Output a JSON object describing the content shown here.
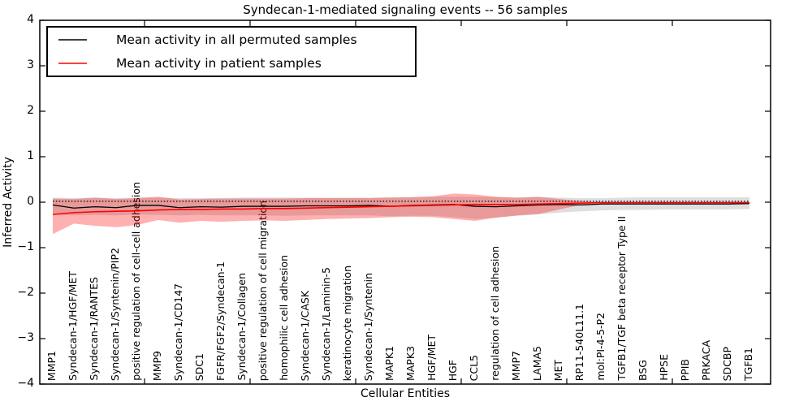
{
  "figure": {
    "title": "Syndecan-1-mediated signaling events -- 56 samples",
    "xlabel": "Cellular Entities",
    "ylabel": "Inferred Activity"
  },
  "legend": {
    "items": [
      {
        "label": "Mean activity in all permuted samples",
        "color": "#000000"
      },
      {
        "label": "Mean activity in patient samples",
        "color": "#ff0000"
      }
    ]
  },
  "chart_data": {
    "type": "line",
    "title": "Syndecan-1-mediated signaling events -- 56 samples",
    "xlabel": "Cellular Entities",
    "ylabel": "Inferred Activity",
    "ylim": [
      -4,
      4
    ],
    "yticks": [
      4,
      3,
      2,
      1,
      0,
      -1,
      -2,
      -3,
      -4
    ],
    "grid": false,
    "legend_position": "upper left",
    "baseline": {
      "value": 0.02,
      "style": "dotted",
      "color": "#000000"
    },
    "categories": [
      "MMP1",
      "Syndecan-1/HGF/MET",
      "Syndecan-1/RANTES",
      "Syndecan-1/Syntenin/PIP2",
      "positive regulation of cell-cell adhesion",
      "MMP9",
      "Syndecan-1/CD147",
      "SDC1",
      "FGFR/FGF2/Syndecan-1",
      "Syndecan-1/Collagen",
      "positive regulation of cell migration",
      "homophilic cell adhesion",
      "Syndecan-1/CASK",
      "Syndecan-1/Laminin-5",
      "keratinocyte migration",
      "Syndecan-1/Syntenin",
      "MAPK1",
      "MAPK3",
      "HGF/MET",
      "HGF",
      "CCL5",
      "regulation of cell adhesion",
      "MMP7",
      "LAMA5",
      "MET",
      "RP11-540L11.1",
      "mol:PI-4-5-P2",
      "TGFB1/TGF beta receptor Type II",
      "BSG",
      "HPSE",
      "PPIB",
      "PRKACA",
      "SDCBP",
      "TGFB1"
    ],
    "series": [
      {
        "name": "Mean activity in all permuted samples",
        "color": "#000000",
        "width": 1.3,
        "values": [
          -0.06,
          -0.13,
          -0.1,
          -0.12,
          -0.07,
          -0.07,
          -0.12,
          -0.1,
          -0.11,
          -0.09,
          -0.09,
          -0.09,
          -0.08,
          -0.08,
          -0.08,
          -0.07,
          -0.09,
          -0.07,
          -0.06,
          -0.05,
          -0.09,
          -0.1,
          -0.08,
          -0.06,
          -0.05,
          -0.06,
          -0.04,
          -0.04,
          -0.04,
          -0.04,
          -0.04,
          -0.04,
          -0.04,
          -0.03
        ]
      },
      {
        "name": "Mean activity in patient samples",
        "color": "#ff0000",
        "width": 1.6,
        "values": [
          -0.27,
          -0.23,
          -0.21,
          -0.2,
          -0.19,
          -0.17,
          -0.16,
          -0.16,
          -0.15,
          -0.15,
          -0.14,
          -0.14,
          -0.13,
          -0.12,
          -0.11,
          -0.1,
          -0.09,
          -0.08,
          -0.07,
          -0.06,
          -0.05,
          -0.05,
          -0.05,
          -0.04,
          -0.03,
          -0.02,
          -0.01,
          -0.01,
          -0.01,
          -0.01,
          -0.01,
          -0.01,
          -0.01,
          -0.01
        ]
      }
    ],
    "bands": [
      {
        "name": "permuted-std-band",
        "color": "rgba(0,0,0,0.13)",
        "upper": [
          0.1,
          0.09,
          0.1,
          0.09,
          0.1,
          0.1,
          0.09,
          0.09,
          0.09,
          0.1,
          0.1,
          0.1,
          0.1,
          0.1,
          0.1,
          0.1,
          0.11,
          0.11,
          0.12,
          0.12,
          0.12,
          0.11,
          0.1,
          0.11,
          0.1,
          0.09,
          0.09,
          0.1,
          0.11,
          0.11,
          0.11,
          0.11,
          0.11,
          0.11
        ],
        "lower": [
          -0.27,
          -0.29,
          -0.28,
          -0.29,
          -0.27,
          -0.28,
          -0.29,
          -0.28,
          -0.29,
          -0.29,
          -0.29,
          -0.3,
          -0.29,
          -0.29,
          -0.29,
          -0.29,
          -0.31,
          -0.3,
          -0.3,
          -0.33,
          -0.37,
          -0.34,
          -0.3,
          -0.27,
          -0.23,
          -0.2,
          -0.18,
          -0.17,
          -0.17,
          -0.16,
          -0.16,
          -0.16,
          -0.16,
          -0.15
        ]
      },
      {
        "name": "patient-std-band",
        "color": "rgba(255,0,0,0.31)",
        "upper": [
          0.08,
          0.07,
          0.1,
          0.07,
          0.09,
          0.12,
          0.06,
          0.07,
          0.08,
          0.08,
          0.08,
          0.08,
          0.09,
          0.09,
          0.09,
          0.09,
          0.1,
          0.11,
          0.13,
          0.19,
          0.17,
          0.12,
          0.1,
          0.12,
          0.07,
          0.03,
          0.0,
          0.0,
          0.0,
          0.0,
          0.0,
          0.0,
          0.0,
          0.0
        ],
        "lower": [
          -0.7,
          -0.47,
          -0.52,
          -0.55,
          -0.5,
          -0.39,
          -0.45,
          -0.41,
          -0.43,
          -0.41,
          -0.4,
          -0.41,
          -0.39,
          -0.37,
          -0.36,
          -0.35,
          -0.33,
          -0.32,
          -0.33,
          -0.37,
          -0.41,
          -0.34,
          -0.29,
          -0.26,
          -0.16,
          -0.06,
          -0.02,
          -0.02,
          -0.02,
          -0.02,
          -0.02,
          -0.02,
          -0.02,
          -0.02
        ]
      }
    ]
  }
}
